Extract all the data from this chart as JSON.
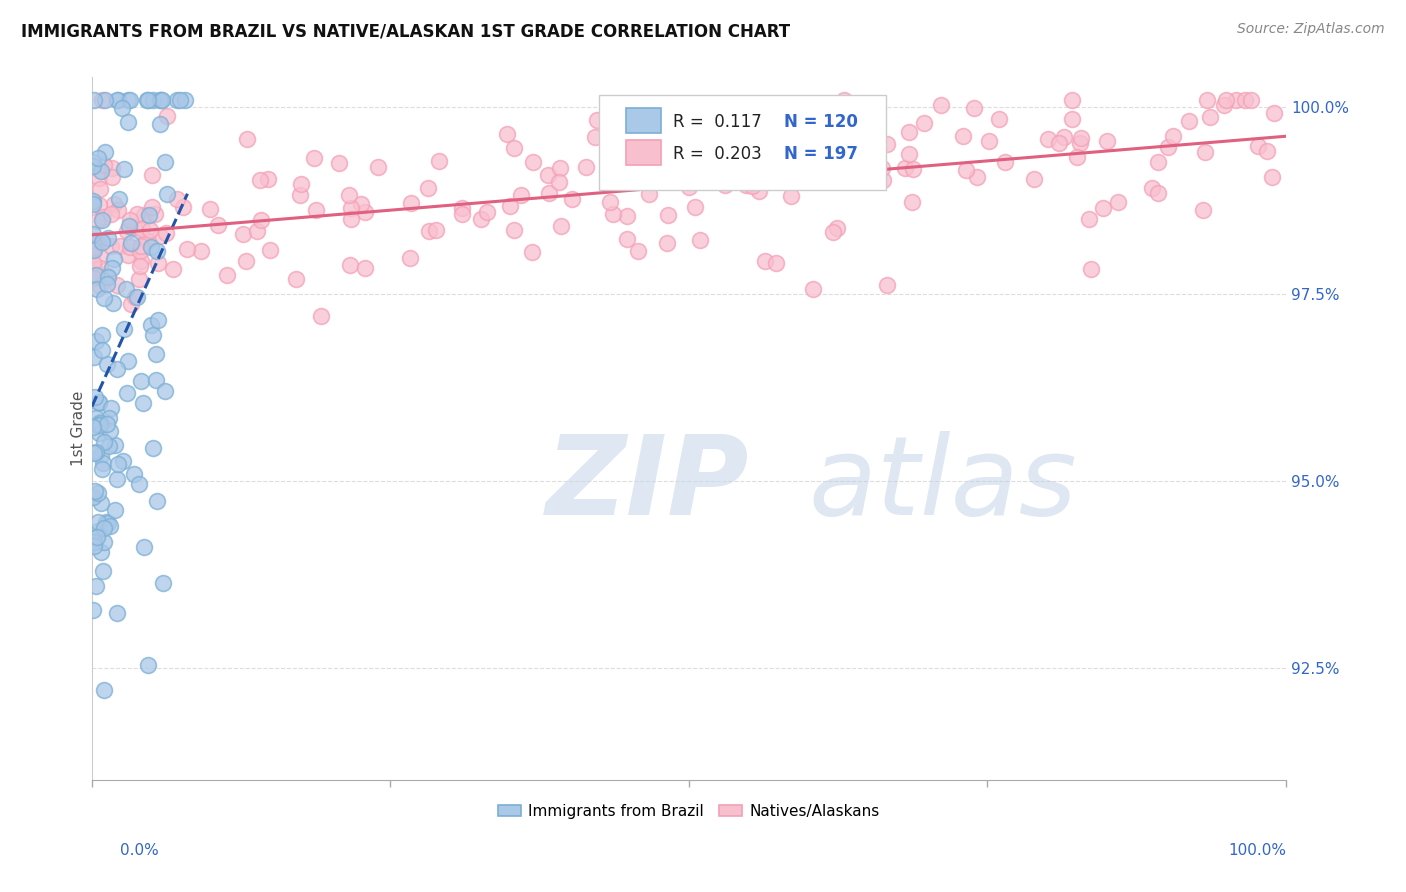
{
  "title": "IMMIGRANTS FROM BRAZIL VS NATIVE/ALASKAN 1ST GRADE CORRELATION CHART",
  "source": "Source: ZipAtlas.com",
  "ylabel": "1st Grade",
  "ytick_labels": [
    "92.5%",
    "95.0%",
    "97.5%",
    "100.0%"
  ],
  "ytick_values": [
    0.925,
    0.95,
    0.975,
    1.0
  ],
  "xlim": [
    0.0,
    1.0
  ],
  "ylim": [
    0.91,
    1.004
  ],
  "legend_brazil_r": "0.117",
  "legend_brazil_n": "120",
  "legend_native_r": "0.203",
  "legend_native_n": "197",
  "brazil_color": "#7bafd4",
  "native_color": "#f4a0b5",
  "brazil_color_fill": "#aac8e8",
  "native_color_fill": "#f8c0cf",
  "trend_brazil_color": "#2255aa",
  "trend_native_color": "#e06080",
  "background_color": "#ffffff",
  "title_fontsize": 12,
  "label_color_blue": "#3366cc",
  "grid_color": "#dddddd",
  "grid_style": "--"
}
